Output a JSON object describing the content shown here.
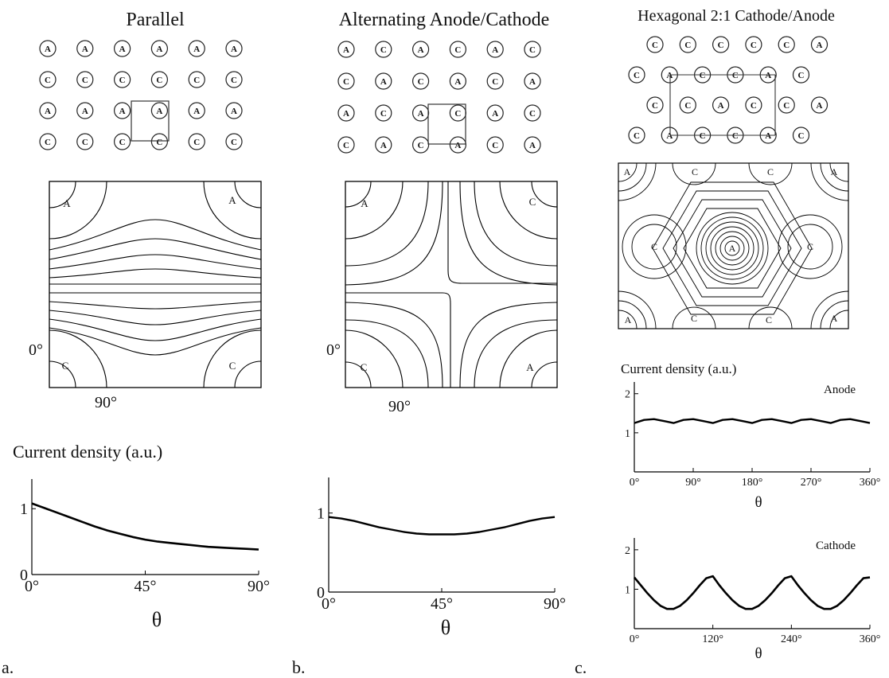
{
  "panels": [
    {
      "id": "a",
      "panel_label": "a.",
      "title": "Parallel",
      "grid": [
        [
          "A",
          "A",
          "A",
          "A",
          "A",
          "A"
        ],
        [
          "C",
          "C",
          "C",
          "C",
          "C",
          "C"
        ],
        [
          "A",
          "A",
          "A",
          "A",
          "A",
          "A"
        ],
        [
          "C",
          "C",
          "C",
          "C",
          "C",
          "C"
        ]
      ],
      "contour_labels": {
        "top_left": "A",
        "top_right": "A",
        "bottom_left": "C",
        "bottom_right": "C"
      },
      "angle_labels": {
        "vertical": "0°",
        "horizontal": "90°"
      },
      "ylabel": "Current density (a.u.)",
      "xlabel": "θ"
    },
    {
      "id": "b",
      "panel_label": "b.",
      "title": "Alternating Anode/Cathode",
      "grid": [
        [
          "A",
          "C",
          "A",
          "C",
          "A",
          "C"
        ],
        [
          "C",
          "A",
          "C",
          "A",
          "C",
          "A"
        ],
        [
          "A",
          "C",
          "A",
          "C",
          "A",
          "C"
        ],
        [
          "C",
          "A",
          "C",
          "A",
          "C",
          "A"
        ]
      ],
      "contour_labels": {
        "top_left": "A",
        "top_right": "C",
        "bottom_left": "C",
        "bottom_right": "A"
      },
      "angle_labels": {
        "vertical": "0°",
        "horizontal": "90°"
      },
      "xlabel": "θ"
    },
    {
      "id": "c",
      "panel_label": "c.",
      "title": "Hexagonal 2:1 Cathode/Anode",
      "grid": [
        [
          "C",
          "C",
          "C",
          "C",
          "C",
          "A"
        ],
        [
          "C",
          "A",
          "C",
          "C",
          "A",
          "C"
        ],
        [
          "C",
          "C",
          "A",
          "C",
          "C",
          "A"
        ],
        [
          "C",
          "A",
          "C",
          "C",
          "A",
          "C"
        ]
      ],
      "contour_labels": {
        "top_left": "A",
        "top_c1": "C",
        "top_c2": "C",
        "top_right": "A",
        "mid_left": "C",
        "center": "A",
        "mid_right": "C",
        "bottom_left": "A",
        "bottom_c1": "C",
        "bottom_c2": "C",
        "bottom_right": "A"
      },
      "ylabel": "Current density (a.u.)",
      "xlabel_anode": "θ",
      "xlabel_cathode": "θ"
    }
  ],
  "chart_data": [
    {
      "type": "line",
      "x": [
        0,
        5,
        10,
        15,
        20,
        25,
        30,
        35,
        40,
        45,
        50,
        55,
        60,
        65,
        70,
        75,
        80,
        85,
        90
      ],
      "series": [
        {
          "values": [
            1.08,
            1.01,
            0.94,
            0.87,
            0.8,
            0.73,
            0.67,
            0.62,
            0.57,
            0.53,
            0.5,
            0.48,
            0.46,
            0.44,
            0.42,
            0.41,
            0.4,
            0.39,
            0.38
          ]
        }
      ],
      "xticks": [
        "0°",
        "45°",
        "90°"
      ],
      "xtick_values": [
        0,
        45,
        90
      ],
      "yticks": [
        "0",
        "1"
      ],
      "ytick_values": [
        0,
        1
      ],
      "xlim": [
        0,
        90
      ],
      "ylim": [
        0,
        1.45
      ],
      "xlabel": "θ",
      "ylabel": "Current density (a.u.)"
    },
    {
      "type": "line",
      "x": [
        0,
        5,
        10,
        15,
        20,
        25,
        30,
        35,
        40,
        45,
        50,
        55,
        60,
        65,
        70,
        75,
        80,
        85,
        90
      ],
      "series": [
        {
          "values": [
            0.95,
            0.93,
            0.9,
            0.86,
            0.82,
            0.79,
            0.76,
            0.74,
            0.73,
            0.73,
            0.73,
            0.74,
            0.76,
            0.79,
            0.82,
            0.86,
            0.9,
            0.93,
            0.95
          ]
        }
      ],
      "xticks": [
        "0°",
        "45°",
        "90°"
      ],
      "xtick_values": [
        0,
        45,
        90
      ],
      "yticks": [
        "0",
        "1"
      ],
      "ytick_values": [
        0,
        1
      ],
      "xlim": [
        0,
        90
      ],
      "ylim": [
        0,
        1.45
      ],
      "xlabel": "θ"
    },
    {
      "type": "line",
      "x": [
        0,
        15,
        30,
        45,
        60,
        75,
        90,
        105,
        120,
        135,
        150,
        165,
        180,
        195,
        210,
        225,
        240,
        255,
        270,
        285,
        300,
        315,
        330,
        345,
        360
      ],
      "series": [
        {
          "name": "Anode",
          "values": [
            1.25,
            1.33,
            1.35,
            1.3,
            1.25,
            1.33,
            1.35,
            1.3,
            1.25,
            1.33,
            1.35,
            1.3,
            1.25,
            1.33,
            1.35,
            1.3,
            1.25,
            1.33,
            1.35,
            1.3,
            1.25,
            1.33,
            1.35,
            1.3,
            1.25
          ]
        }
      ],
      "xticks": [
        "0°",
        "90°",
        "180°",
        "270°",
        "360°"
      ],
      "xtick_values": [
        0,
        90,
        180,
        270,
        360
      ],
      "yticks": [
        "1",
        "2"
      ],
      "ytick_values": [
        1,
        2
      ],
      "xlim": [
        0,
        360
      ],
      "ylim": [
        0,
        2.3
      ],
      "xlabel": "θ",
      "ylabel": "Current density (a.u.)"
    },
    {
      "type": "line",
      "x": [
        0,
        10,
        20,
        30,
        40,
        50,
        60,
        70,
        80,
        90,
        100,
        110,
        120,
        130,
        140,
        150,
        160,
        170,
        180,
        190,
        200,
        210,
        220,
        230,
        240,
        250,
        260,
        270,
        280,
        290,
        300,
        310,
        320,
        330,
        340,
        350,
        360
      ],
      "series": [
        {
          "name": "Cathode",
          "values": [
            1.3,
            1.1,
            0.9,
            0.72,
            0.58,
            0.5,
            0.5,
            0.58,
            0.72,
            0.9,
            1.1,
            1.28,
            1.33,
            1.1,
            0.9,
            0.72,
            0.58,
            0.5,
            0.5,
            0.58,
            0.72,
            0.9,
            1.1,
            1.28,
            1.33,
            1.1,
            0.9,
            0.72,
            0.58,
            0.5,
            0.5,
            0.58,
            0.72,
            0.9,
            1.1,
            1.28,
            1.3
          ]
        }
      ],
      "xticks": [
        "0°",
        "120°",
        "240°",
        "360°"
      ],
      "xtick_values": [
        0,
        120,
        240,
        360
      ],
      "yticks": [
        "1",
        "2"
      ],
      "ytick_values": [
        1,
        2
      ],
      "xlim": [
        0,
        360
      ],
      "ylim": [
        0,
        2.3
      ],
      "xlabel": "θ"
    }
  ]
}
